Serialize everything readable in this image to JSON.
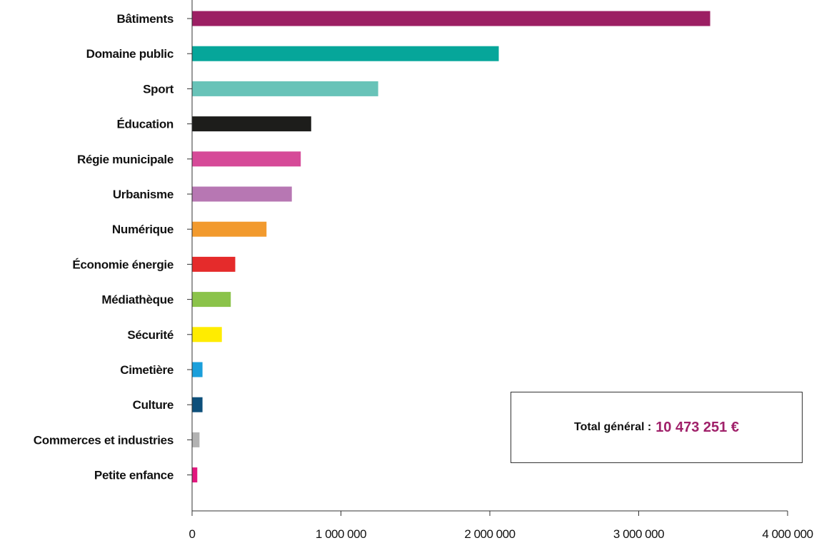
{
  "chart_data": {
    "type": "bar",
    "orientation": "horizontal",
    "title": "",
    "xlabel": "",
    "ylabel": "",
    "xlim": [
      0,
      4000000
    ],
    "grid": false,
    "categories": [
      "Bâtiments",
      "Domaine public",
      "Sport",
      "Éducation",
      "Régie municipale",
      "Urbanisme",
      "Numérique",
      "Économie énergie",
      "Médiathèque",
      "Sécurité",
      "Cimetière",
      "Culture",
      "Commerces et industries",
      "Petite enfance"
    ],
    "values": [
      3480000,
      2060000,
      1250000,
      800000,
      730000,
      670000,
      500000,
      290000,
      260000,
      200000,
      70000,
      70000,
      50000,
      35000
    ],
    "colors": [
      "#9c1f63",
      "#06a69a",
      "#68c3b8",
      "#1d1d1b",
      "#d64a98",
      "#b777b3",
      "#f29a2e",
      "#e52b2b",
      "#8bc34a",
      "#ffec00",
      "#1a9fdb",
      "#0d4f7a",
      "#b2b2b2",
      "#e2177e"
    ],
    "x_ticks": [
      {
        "value": 0,
        "label": "0"
      },
      {
        "value": 1000000,
        "label": "1 000 000"
      },
      {
        "value": 2000000,
        "label": "2 000 000"
      },
      {
        "value": 3000000,
        "label": "3 000 000"
      },
      {
        "value": 4000000,
        "label": "4 000 000"
      }
    ]
  },
  "total": {
    "label": "Total général :",
    "value": "10 473 251 €"
  },
  "accent_color": "#a0216a"
}
